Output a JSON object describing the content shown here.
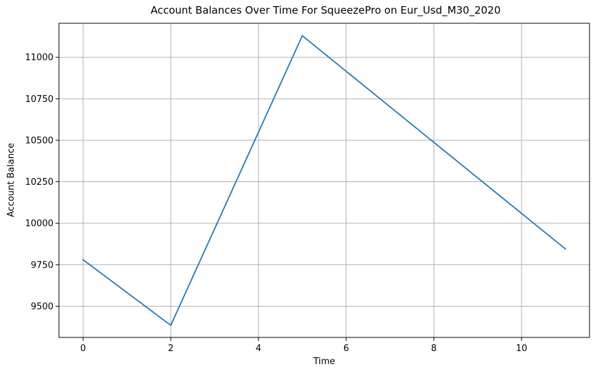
{
  "chart_data": {
    "type": "line",
    "title": "Account Balances Over Time For SqueezePro on Eur_Usd_M30_2020",
    "xlabel": "Time",
    "ylabel": "Account Balance",
    "x": [
      0,
      2,
      5,
      11
    ],
    "series": [
      {
        "values": [
          9780,
          9385,
          11130,
          9845
        ],
        "color": "#1f77b4"
      }
    ],
    "xlim": [
      -0.55,
      11.55
    ],
    "ylim": [
      9312,
      11205
    ],
    "xticks": [
      0,
      2,
      4,
      6,
      8,
      10
    ],
    "yticks": [
      9500,
      9750,
      10000,
      10250,
      10500,
      10750,
      11000
    ],
    "grid": true,
    "grid_color": "#b0b0b0",
    "line_color": "#1f77b4"
  }
}
